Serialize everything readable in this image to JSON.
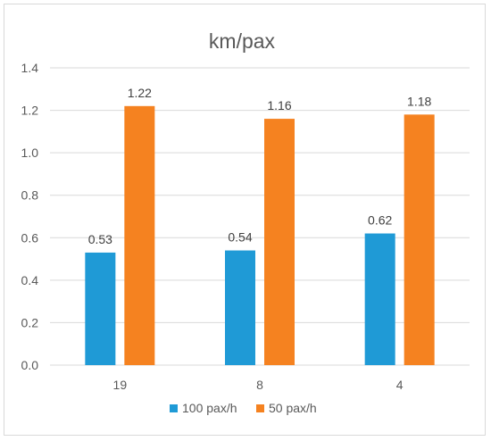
{
  "chart_data": {
    "type": "bar",
    "title": "km/pax",
    "xlabel": "",
    "ylabel": "",
    "categories": [
      "19",
      "8",
      "4"
    ],
    "series": [
      {
        "name": "100 pax/h",
        "color": "#1f9ad6",
        "values": [
          0.53,
          0.54,
          0.62
        ],
        "labels": [
          "0.53",
          "0.54",
          "0.62"
        ]
      },
      {
        "name": "50 pax/h",
        "color": "#f58220",
        "values": [
          1.22,
          1.16,
          1.18
        ],
        "labels": [
          "1.22",
          "1.16",
          "1.18"
        ]
      }
    ],
    "ylim": [
      0,
      1.4
    ],
    "yticks": [
      "0.0",
      "0.2",
      "0.4",
      "0.6",
      "0.8",
      "1.0",
      "1.2",
      "1.4"
    ],
    "grid": true,
    "legend_position": "bottom"
  }
}
